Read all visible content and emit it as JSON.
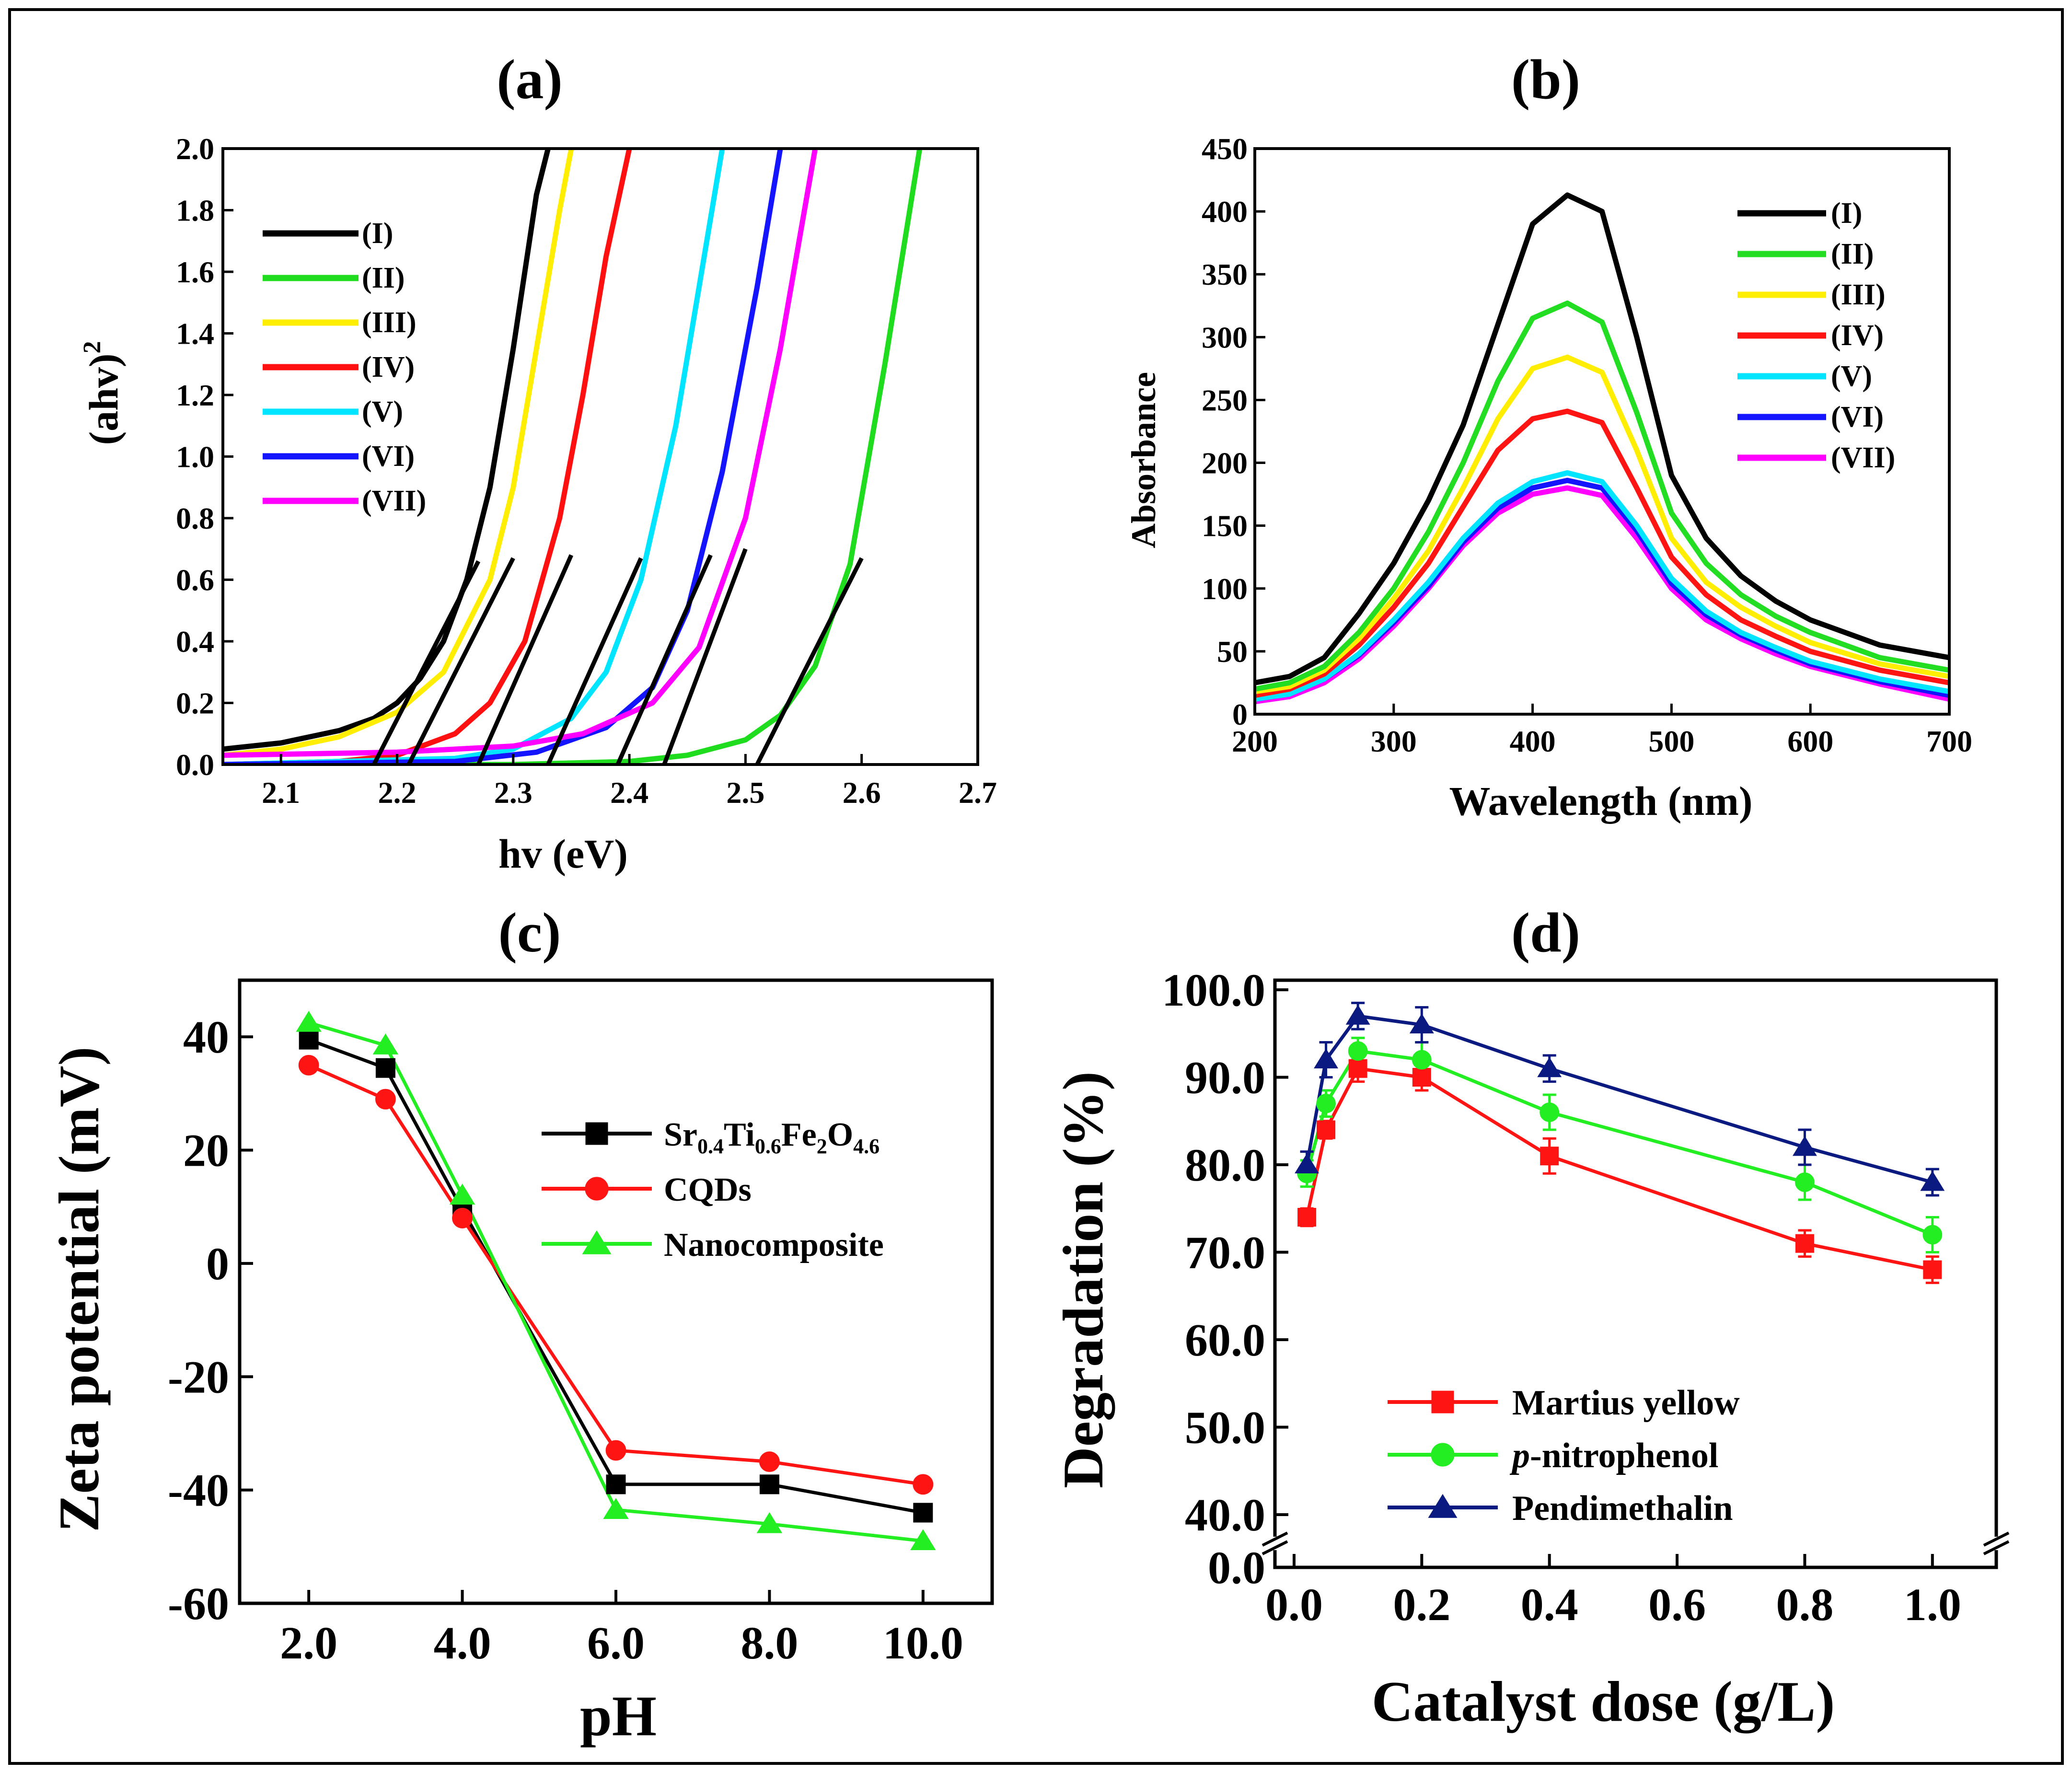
{
  "chart_data": [
    {
      "panel": "(a)",
      "type": "line",
      "title": "(a)",
      "xlabel": "hv (eV)",
      "ylabel": "(ahv)",
      "ylabel_sup": "2",
      "xlim": [
        2.05,
        2.7
      ],
      "ylim": [
        0.0,
        2.0
      ],
      "xticks": [
        "2.1",
        "2.2",
        "2.3",
        "2.4",
        "2.5",
        "2.6",
        "2.7"
      ],
      "yticks": [
        "0.0",
        "0.2",
        "0.4",
        "0.6",
        "0.8",
        "1.0",
        "1.2",
        "1.4",
        "1.6",
        "1.8",
        "2.0"
      ],
      "series": [
        {
          "name": "(I)",
          "color": "#000000",
          "x": [
            2.05,
            2.1,
            2.15,
            2.18,
            2.2,
            2.22,
            2.24,
            2.26,
            2.28,
            2.3,
            2.32,
            2.33
          ],
          "y": [
            0.05,
            0.07,
            0.11,
            0.15,
            0.2,
            0.28,
            0.4,
            0.6,
            0.9,
            1.35,
            1.85,
            2.0
          ]
        },
        {
          "name": "(II)",
          "color": "#1fdc1f",
          "x": [
            2.05,
            2.3,
            2.4,
            2.45,
            2.5,
            2.53,
            2.56,
            2.59,
            2.62,
            2.65
          ],
          "y": [
            0.0,
            0.0,
            0.01,
            0.03,
            0.08,
            0.16,
            0.32,
            0.65,
            1.3,
            2.0
          ]
        },
        {
          "name": "(III)",
          "color": "#ffee00",
          "x": [
            2.05,
            2.1,
            2.15,
            2.2,
            2.24,
            2.28,
            2.3,
            2.32,
            2.34,
            2.35
          ],
          "y": [
            0.03,
            0.05,
            0.09,
            0.17,
            0.3,
            0.6,
            0.9,
            1.35,
            1.8,
            2.0
          ]
        },
        {
          "name": "(IV)",
          "color": "#ff1010",
          "x": [
            2.05,
            2.15,
            2.2,
            2.25,
            2.28,
            2.31,
            2.34,
            2.36,
            2.38,
            2.4
          ],
          "y": [
            0.0,
            0.01,
            0.03,
            0.1,
            0.2,
            0.4,
            0.8,
            1.2,
            1.65,
            2.0
          ]
        },
        {
          "name": "(V)",
          "color": "#00e5ff",
          "x": [
            2.05,
            2.25,
            2.3,
            2.35,
            2.38,
            2.41,
            2.44,
            2.46,
            2.48
          ],
          "y": [
            0.0,
            0.02,
            0.05,
            0.15,
            0.3,
            0.6,
            1.1,
            1.55,
            2.0
          ]
        },
        {
          "name": "(VI)",
          "color": "#1414ff",
          "x": [
            2.05,
            2.25,
            2.32,
            2.38,
            2.42,
            2.45,
            2.48,
            2.51,
            2.53
          ],
          "y": [
            0.0,
            0.01,
            0.04,
            0.12,
            0.25,
            0.5,
            0.95,
            1.55,
            2.0
          ]
        },
        {
          "name": "(VII)",
          "color": "#ff00ff",
          "x": [
            2.05,
            2.2,
            2.3,
            2.36,
            2.42,
            2.46,
            2.5,
            2.53,
            2.56
          ],
          "y": [
            0.03,
            0.04,
            0.06,
            0.1,
            0.2,
            0.38,
            0.8,
            1.35,
            2.0
          ]
        }
      ],
      "tangent_lines": [
        {
          "x": [
            2.18,
            2.27
          ],
          "y": [
            0.0,
            0.66
          ]
        },
        {
          "x": [
            2.21,
            2.3
          ],
          "y": [
            0.0,
            0.67
          ]
        },
        {
          "x": [
            2.27,
            2.35
          ],
          "y": [
            0.0,
            0.68
          ]
        },
        {
          "x": [
            2.33,
            2.41
          ],
          "y": [
            0.0,
            0.67
          ]
        },
        {
          "x": [
            2.39,
            2.47
          ],
          "y": [
            0.0,
            0.68
          ]
        },
        {
          "x": [
            2.43,
            2.5
          ],
          "y": [
            0.0,
            0.7
          ]
        },
        {
          "x": [
            2.51,
            2.6
          ],
          "y": [
            0.0,
            0.67
          ]
        }
      ],
      "legend": [
        "(I)",
        "(II)",
        "(III)",
        "(IV)",
        "(V)",
        "(VI)",
        "(VII)"
      ],
      "legend_position": "upper-left"
    },
    {
      "panel": "(b)",
      "type": "line",
      "title": "(b)",
      "xlabel": "Wavelength (nm)",
      "ylabel": "Absorbance",
      "xlim": [
        200,
        700
      ],
      "ylim": [
        0,
        450
      ],
      "xticks": [
        "200",
        "300",
        "400",
        "500",
        "600",
        "700"
      ],
      "yticks": [
        "0",
        "50",
        "100",
        "150",
        "200",
        "250",
        "300",
        "350",
        "400",
        "450"
      ],
      "x": [
        200,
        225,
        250,
        275,
        300,
        325,
        350,
        375,
        400,
        425,
        450,
        475,
        500,
        525,
        550,
        575,
        600,
        650,
        700
      ],
      "series": [
        {
          "name": "(I)",
          "color": "#000000",
          "values": [
            25,
            30,
            45,
            80,
            120,
            170,
            230,
            310,
            390,
            413,
            400,
            300,
            190,
            140,
            110,
            90,
            75,
            55,
            45
          ]
        },
        {
          "name": "(II)",
          "color": "#22dd22",
          "values": [
            20,
            25,
            38,
            65,
            100,
            145,
            200,
            265,
            315,
            327,
            312,
            240,
            160,
            120,
            95,
            78,
            65,
            45,
            35
          ]
        },
        {
          "name": "(III)",
          "color": "#ffee00",
          "values": [
            18,
            22,
            35,
            60,
            92,
            130,
            180,
            235,
            275,
            284,
            272,
            210,
            140,
            105,
            85,
            70,
            57,
            40,
            30
          ]
        },
        {
          "name": "(IV)",
          "color": "#ff1414",
          "values": [
            15,
            20,
            32,
            55,
            85,
            120,
            165,
            210,
            235,
            241,
            232,
            180,
            125,
            95,
            75,
            62,
            50,
            35,
            25
          ]
        },
        {
          "name": "(V)",
          "color": "#00e5ff",
          "values": [
            12,
            16,
            28,
            48,
            75,
            105,
            140,
            168,
            185,
            192,
            185,
            150,
            108,
            82,
            65,
            53,
            42,
            28,
            18
          ]
        },
        {
          "name": "(VI)",
          "color": "#1414ff",
          "values": [
            12,
            16,
            28,
            47,
            73,
            102,
            137,
            164,
            180,
            186,
            180,
            146,
            104,
            79,
            63,
            51,
            40,
            26,
            15
          ]
        },
        {
          "name": "(VII)",
          "color": "#ff00ff",
          "values": [
            10,
            14,
            25,
            44,
            70,
            100,
            134,
            160,
            175,
            180,
            174,
            140,
            100,
            75,
            60,
            48,
            38,
            24,
            12
          ]
        }
      ],
      "legend": [
        "(I)",
        "(II)",
        "(III)",
        "(IV)",
        "(V)",
        "(VI)",
        "(VII)"
      ],
      "legend_position": "upper-right"
    },
    {
      "panel": "(c)",
      "type": "line",
      "title": "(c)",
      "xlabel": "pH",
      "ylabel": "Zeta potential (mV)",
      "xlim": [
        1.1,
        10.9
      ],
      "ylim": [
        -60,
        50
      ],
      "xticks": [
        "2.0",
        "4.0",
        "6.0",
        "8.0",
        "10.0"
      ],
      "yticks": [
        "-60",
        "-40",
        "-20",
        "0",
        "20",
        "40"
      ],
      "x": [
        2,
        3,
        4,
        6,
        8,
        10
      ],
      "series": [
        {
          "name": "Sr0.4Ti0.6Fe2O4.6",
          "legend_main": [
            "Sr",
            "Ti",
            "Fe",
            "O"
          ],
          "legend_sub": [
            "0.4",
            "0.6",
            "2",
            "4.6"
          ],
          "color": "#000000",
          "marker": "square",
          "values": [
            39.5,
            34.5,
            9.5,
            -39,
            -39,
            -44
          ]
        },
        {
          "name": "CQDs",
          "color": "#ff1414",
          "marker": "circle",
          "values": [
            35,
            29,
            8,
            -33,
            -35,
            -39
          ]
        },
        {
          "name": "Nanocomposite",
          "color": "#22ee22",
          "marker": "triangle",
          "values": [
            42.5,
            38.5,
            12,
            -43.5,
            -46,
            -49
          ]
        }
      ],
      "legend_position": "middle-right"
    },
    {
      "panel": "(d)",
      "type": "line",
      "title": "(d)",
      "xlabel": "Catalyst dose (g/L)",
      "ylabel": "Degradation (%)",
      "xlim": [
        -0.03,
        1.1
      ],
      "ylim": [
        35,
        100
      ],
      "axis_break": true,
      "xticks": [
        "0.0",
        "0.2",
        "0.4",
        "0.6",
        "0.8",
        "1.0"
      ],
      "yticks": [
        "0.0",
        "40.0",
        "50.0",
        "60.0",
        "70.0",
        "80.0",
        "90.0",
        "100.0"
      ],
      "x": [
        0.02,
        0.05,
        0.1,
        0.2,
        0.4,
        0.8,
        1.0
      ],
      "series": [
        {
          "name": "Martius yellow",
          "color": "#ff1414",
          "marker": "square",
          "values": [
            74,
            84,
            91,
            90,
            81,
            71,
            68
          ],
          "errors": [
            1,
            1,
            1.5,
            1.5,
            2,
            1.5,
            1.5
          ]
        },
        {
          "name": "p-nitrophenol",
          "legend_italic": "p",
          "legend_rest": "-nitrophenol",
          "color": "#22ee22",
          "marker": "circle",
          "values": [
            79,
            87,
            93,
            92,
            86,
            78,
            72
          ],
          "errors": [
            1.5,
            1.5,
            1.5,
            2,
            2,
            2,
            2
          ]
        },
        {
          "name": "Pendimethalin",
          "color": "#0a1a80",
          "marker": "triangle",
          "values": [
            80,
            92,
            97,
            96,
            91,
            82,
            78
          ],
          "errors": [
            1.5,
            2,
            1.5,
            2,
            1.5,
            2,
            1.5
          ]
        }
      ],
      "legend_position": "lower-left"
    }
  ]
}
